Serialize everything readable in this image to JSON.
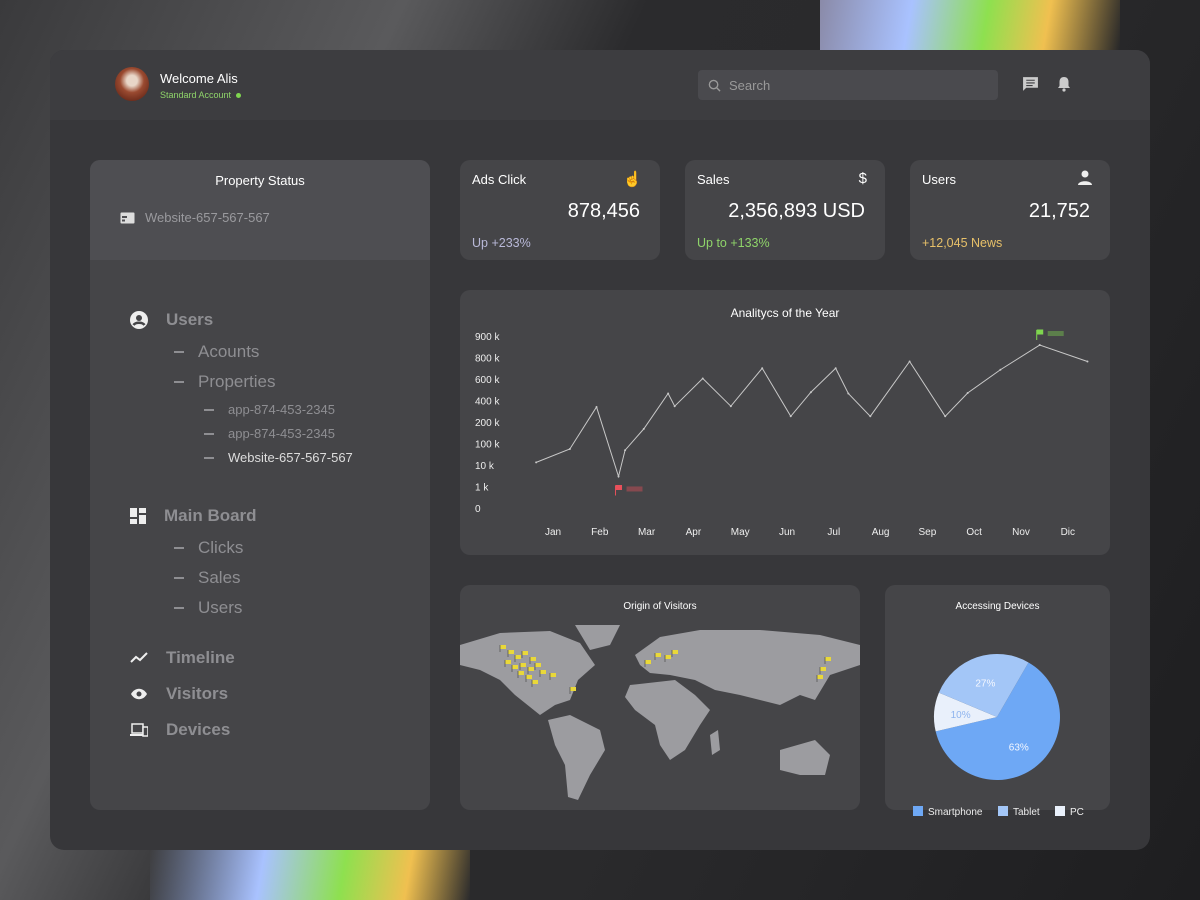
{
  "header": {
    "welcome": "Welcome Alis",
    "account": "Standard Account",
    "search_placeholder": "Search",
    "icons": [
      "chat-icon",
      "bell-icon"
    ]
  },
  "sidebar": {
    "title": "Property Status",
    "current_property": "Website-657-567-567",
    "sections": [
      {
        "label": "Users",
        "icon": "user-circle-icon",
        "children": [
          {
            "label": "Acounts"
          },
          {
            "label": "Properties",
            "children": [
              "app-874-453-2345",
              "app-874-453-2345",
              "Website-657-567-567"
            ]
          }
        ]
      },
      {
        "label": "Main Board",
        "icon": "dashboard-icon",
        "children": [
          {
            "label": "Clicks"
          },
          {
            "label": "Sales"
          },
          {
            "label": "Users"
          }
        ]
      },
      {
        "label": "Timeline",
        "icon": "trend-icon"
      },
      {
        "label": "Visitors",
        "icon": "eye-icon"
      },
      {
        "label": "Devices",
        "icon": "devices-icon"
      }
    ]
  },
  "cards": [
    {
      "label": "Ads Click",
      "value": "878,456",
      "foot": "Up  +233%",
      "icon": "pointer-icon",
      "foot_color": "#b9b9d8"
    },
    {
      "label": "Sales",
      "value": "2,356,893 USD",
      "foot": "Up to +133%",
      "icon": "dollar-icon",
      "foot_color": "#8fd46a"
    },
    {
      "label": "Users",
      "value": "21,752",
      "foot": "+12,045 News",
      "icon": "user-icon",
      "foot_color": "#e7c069"
    }
  ],
  "chart_data": [
    {
      "type": "line",
      "title": "Analitycs of the Year",
      "categories": [
        "Jan",
        "Feb",
        "Mar",
        "Apr",
        "May",
        "Jun",
        "Jul",
        "Aug",
        "Sep",
        "Oct",
        "Nov",
        "Dic"
      ],
      "y_ticks": [
        "0",
        "1 k",
        "10 k",
        "100 k",
        "200 k",
        "400 k",
        "600 k",
        "800 k",
        "900 k"
      ],
      "y_tick_values": [
        0,
        1000,
        10000,
        100000,
        200000,
        400000,
        600000,
        800000,
        900000
      ],
      "x": [
        0.64,
        1.36,
        1.93,
        2.4,
        2.54,
        2.94,
        3.46,
        3.6,
        4.2,
        4.8,
        5.47,
        6.08,
        6.51,
        7.04,
        7.31,
        7.78,
        8.62,
        9.38,
        9.86,
        10.56,
        11.4,
        12.42
      ],
      "y": [
        21000,
        77000,
        340000,
        5200,
        72000,
        168000,
        465000,
        347000,
        605000,
        347000,
        700000,
        253000,
        477000,
        700000,
        465000,
        253000,
        763000,
        253000,
        470000,
        686000,
        858000,
        763000
      ],
      "markers": [
        {
          "kind": "min",
          "color": "#e8505b"
        },
        {
          "kind": "max",
          "color": "#7fd64f"
        }
      ],
      "line_color": "#c8c8c8",
      "grid": false
    },
    {
      "type": "pie",
      "title": "Accessing Devices",
      "slices": [
        {
          "name": "Smartphone",
          "value": 63,
          "label": "63%",
          "color": "#6ea8f5"
        },
        {
          "name": "PC",
          "value": 10,
          "label": "10%",
          "color": "#e9f0fb"
        },
        {
          "name": "Tablet",
          "value": 27,
          "label": "27%",
          "color": "#a3c6f7"
        }
      ],
      "legend": [
        "Smartphone",
        "Tablet",
        "PC"
      ],
      "legend_position": "bottom"
    }
  ],
  "map": {
    "title": "Origin of Visitors",
    "marker_color": "#e9d83a"
  }
}
